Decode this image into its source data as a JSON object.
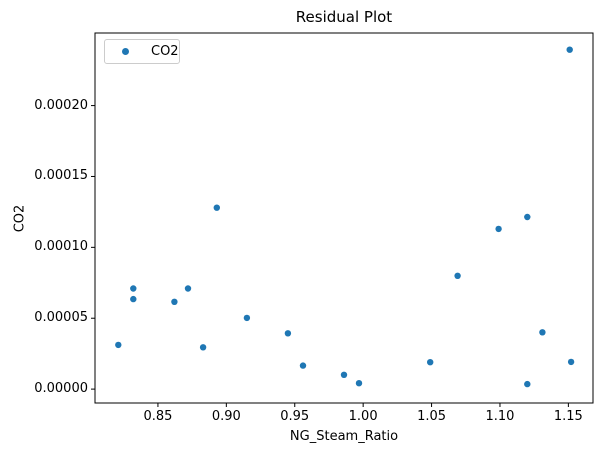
{
  "chart_data": {
    "type": "scatter",
    "title": "Residual Plot",
    "xlabel": "NG_Steam_Ratio",
    "ylabel": "CO2",
    "grid": false,
    "legend": {
      "position": "upper left",
      "entries": [
        "CO2"
      ]
    },
    "marker_color": "#1f77b4",
    "xlim": [
      0.804,
      1.168
    ],
    "ylim": [
      -9.8e-06,
      0.0002512
    ],
    "xticks": {
      "values": [
        0.85,
        0.9,
        0.95,
        1.0,
        1.05,
        1.1,
        1.15
      ],
      "labels": [
        "0.85",
        "0.90",
        "0.95",
        "1.00",
        "1.05",
        "1.10",
        "1.15"
      ]
    },
    "yticks": {
      "values": [
        0.0,
        5e-05,
        0.0001,
        0.00015,
        0.0002
      ],
      "labels": [
        "0.00000",
        "0.00005",
        "0.00010",
        "0.00015",
        "0.00020"
      ]
    },
    "series": [
      {
        "name": "CO2",
        "color": "#1f77b4",
        "x": [
          0.821,
          0.832,
          0.832,
          0.862,
          0.872,
          0.883,
          0.893,
          0.915,
          0.945,
          0.956,
          0.986,
          0.997,
          1.049,
          1.069,
          1.099,
          1.12,
          1.12,
          1.131,
          1.151,
          1.152
        ],
        "y": [
          3.12e-05,
          7.1e-05,
          6.35e-05,
          6.16e-05,
          7.1e-05,
          2.95e-05,
          0.000128,
          5.02e-05,
          3.94e-05,
          1.66e-05,
          1.01e-05,
          4.2e-06,
          1.9e-05,
          7.99e-05,
          0.000113,
          0.0001214,
          3.5e-06,
          4.01e-05,
          0.0002394,
          1.92e-05
        ]
      }
    ]
  }
}
